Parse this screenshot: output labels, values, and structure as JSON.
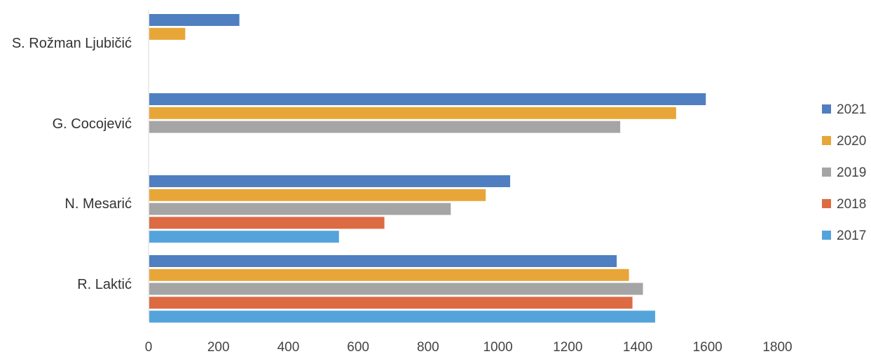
{
  "chart_data": {
    "type": "bar",
    "orientation": "horizontal",
    "categories": [
      "S. Rožman Ljubičić",
      "G. Cocojević",
      "N. Mesarić",
      "R. Laktić"
    ],
    "series": [
      {
        "name": "2021",
        "color": "#4f7fc0",
        "values": [
          260,
          1595,
          1035,
          1340
        ]
      },
      {
        "name": "2020",
        "color": "#e7a637",
        "values": [
          105,
          1510,
          965,
          1375
        ]
      },
      {
        "name": "2019",
        "color": "#a5a5a5",
        "values": [
          null,
          1350,
          865,
          1415
        ]
      },
      {
        "name": "2018",
        "color": "#dc6a42",
        "values": [
          null,
          null,
          675,
          1385
        ]
      },
      {
        "name": "2017",
        "color": "#54a4db",
        "values": [
          null,
          null,
          545,
          1450
        ]
      }
    ],
    "x_ticks": [
      "0",
      "200",
      "400",
      "600",
      "800",
      "1000",
      "1200",
      "1400",
      "1600",
      "1800"
    ],
    "xlim": [
      0,
      1800
    ],
    "grid": false,
    "legend_position": "right",
    "legend_order": [
      "2021",
      "2020",
      "2019",
      "2018",
      "2017"
    ]
  }
}
